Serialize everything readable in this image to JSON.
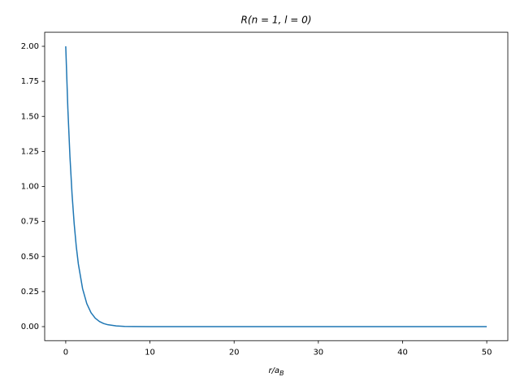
{
  "chart_data": {
    "type": "line",
    "title": "R(n = 1, l = 0)",
    "xlabel": {
      "main": "r/a",
      "sub": "B"
    },
    "x": [
      0,
      0.25,
      0.5,
      0.75,
      1,
      1.25,
      1.5,
      2,
      2.5,
      3,
      3.5,
      4,
      4.5,
      5,
      6,
      7,
      8,
      10,
      15,
      20,
      30,
      40,
      50
    ],
    "series": [
      {
        "name": "R",
        "color": "#1f77b4",
        "values": [
          2,
          1.5576,
          1.2131,
          0.9447,
          0.7358,
          0.573,
          0.4463,
          0.2707,
          0.1642,
          0.0996,
          0.0604,
          0.0366,
          0.0222,
          0.0135,
          0.005,
          0.0018,
          0.0007,
          0.0001,
          0,
          0,
          0,
          0,
          0
        ]
      }
    ],
    "xlim": [
      -2.5,
      52.5
    ],
    "ylim": [
      -0.1,
      2.1
    ],
    "xticks": [
      0,
      10,
      20,
      30,
      40,
      50
    ],
    "yticks": [
      {
        "value": 0,
        "label": "0.00"
      },
      {
        "value": 0.25,
        "label": "0.25"
      },
      {
        "value": 0.5,
        "label": "0.50"
      },
      {
        "value": 0.75,
        "label": "0.75"
      },
      {
        "value": 1,
        "label": "1.00"
      },
      {
        "value": 1.25,
        "label": "1.25"
      },
      {
        "value": 1.5,
        "label": "1.50"
      },
      {
        "value": 1.75,
        "label": "1.75"
      },
      {
        "value": 2,
        "label": "2.00"
      }
    ],
    "grid": false
  }
}
